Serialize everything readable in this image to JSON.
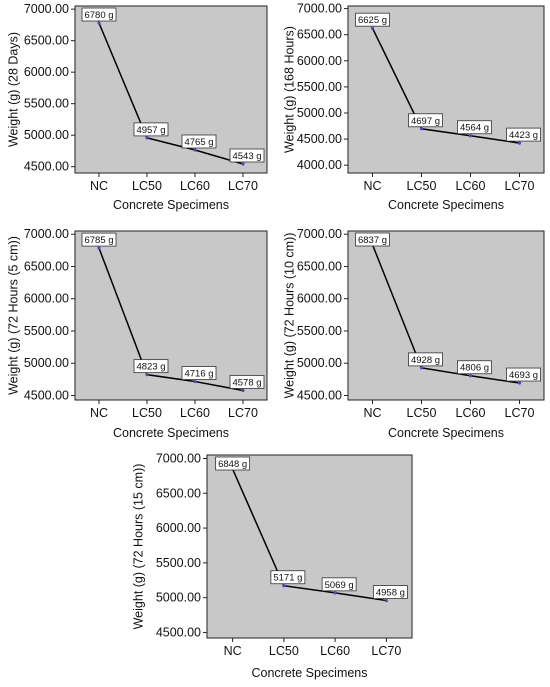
{
  "chart_data": [
    {
      "type": "line",
      "xlabel": "Concrete Specimens",
      "ylabel": "Weight (g) (28 Days)",
      "categories": [
        "NC",
        "LC50",
        "LC60",
        "LC70"
      ],
      "values": [
        6780,
        4957,
        4765,
        4543
      ],
      "data_labels": [
        "6780 g",
        "4957 g",
        "4765 g",
        "4543 g"
      ],
      "yticks": [
        "7000.00",
        "6500.00",
        "6000.00",
        "5500.00",
        "5000.00",
        "4500.00"
      ],
      "ylim": [
        4400,
        7050
      ],
      "grid": false
    },
    {
      "type": "line",
      "xlabel": "Concrete Specimens",
      "ylabel": "Weight (g) (168 Hours)",
      "categories": [
        "NC",
        "LC50",
        "LC60",
        "LC70"
      ],
      "values": [
        6625,
        4697,
        4564,
        4423
      ],
      "data_labels": [
        "6625 g",
        "4697 g",
        "4564 g",
        "4423 g"
      ],
      "yticks": [
        "7000.00",
        "6500.00",
        "6000.00",
        "5500.00",
        "5000.00",
        "4500.00",
        "4000.00"
      ],
      "ylim": [
        3850,
        7050
      ],
      "grid": false
    },
    {
      "type": "line",
      "xlabel": "Concrete Specimens",
      "ylabel": "Weight (g) (72 Hours (5 cm))",
      "categories": [
        "NC",
        "LC50",
        "LC60",
        "LC70"
      ],
      "values": [
        6785,
        4823,
        4716,
        4578
      ],
      "data_labels": [
        "6785 g",
        "4823 g",
        "4716 g",
        "4578 g"
      ],
      "yticks": [
        "7000.00",
        "6500.00",
        "6000.00",
        "5500.00",
        "5000.00",
        "4500.00"
      ],
      "ylim": [
        4430,
        7050
      ],
      "grid": false
    },
    {
      "type": "line",
      "xlabel": "Concrete Specimens",
      "ylabel": "Weight (g) (72 Hours (10 cm))",
      "categories": [
        "NC",
        "LC50",
        "LC60",
        "LC70"
      ],
      "values": [
        6837,
        4928,
        4806,
        4693
      ],
      "data_labels": [
        "6837 g",
        "4928 g",
        "4806 g",
        "4693 g"
      ],
      "yticks": [
        "7000.00",
        "6500.00",
        "6000.00",
        "5500.00",
        "5000.00",
        "4500.00"
      ],
      "ylim": [
        4430,
        7050
      ],
      "grid": false
    },
    {
      "type": "line",
      "xlabel": "Concrete Specimens",
      "ylabel": "Weight (g) (72 Hours (15 cm))",
      "categories": [
        "NC",
        "LC50",
        "LC60",
        "LC70"
      ],
      "values": [
        6848,
        5171,
        5069,
        4958
      ],
      "data_labels": [
        "6848 g",
        "5171 g",
        "5069 g",
        "4958 g"
      ],
      "yticks": [
        "7000.00",
        "6500.00",
        "6000.00",
        "5500.00",
        "5000.00",
        "4500.00"
      ],
      "ylim": [
        4420,
        7050
      ],
      "grid": false
    }
  ],
  "colors": {
    "plot_background": "#c8c8c8",
    "line": "#000000",
    "marker": "#4a4ac8",
    "label_box": "#ffffff"
  }
}
